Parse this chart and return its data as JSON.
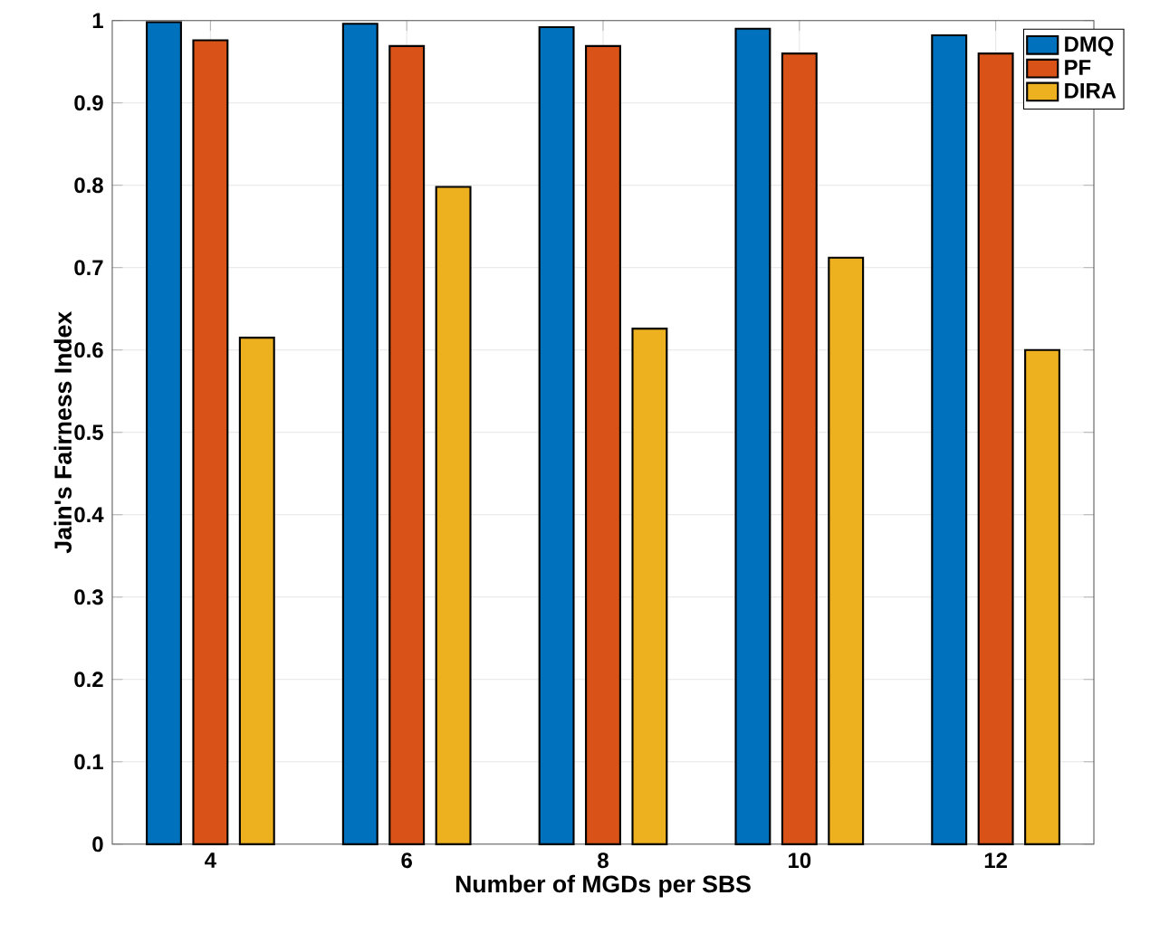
{
  "chart_data": {
    "type": "bar",
    "xlabel": "Number of MGDs per SBS",
    "ylabel": "Jain's Fairness Index",
    "categories": [
      "4",
      "6",
      "8",
      "10",
      "12"
    ],
    "series": [
      {
        "name": "DMQ",
        "color": "#0072bd",
        "values": [
          0.998,
          0.996,
          0.992,
          0.99,
          0.982
        ]
      },
      {
        "name": "PF",
        "color": "#d95319",
        "values": [
          0.976,
          0.969,
          0.969,
          0.96,
          0.96
        ]
      },
      {
        "name": "DIRA",
        "color": "#edb120",
        "values": [
          0.615,
          0.798,
          0.626,
          0.712,
          0.6
        ]
      }
    ],
    "ylim": [
      0,
      1
    ],
    "yticks": [
      0,
      0.1,
      0.2,
      0.3,
      0.4,
      0.5,
      0.6,
      0.7,
      0.8,
      0.9,
      1
    ],
    "grid": true,
    "legend": "top right"
  }
}
